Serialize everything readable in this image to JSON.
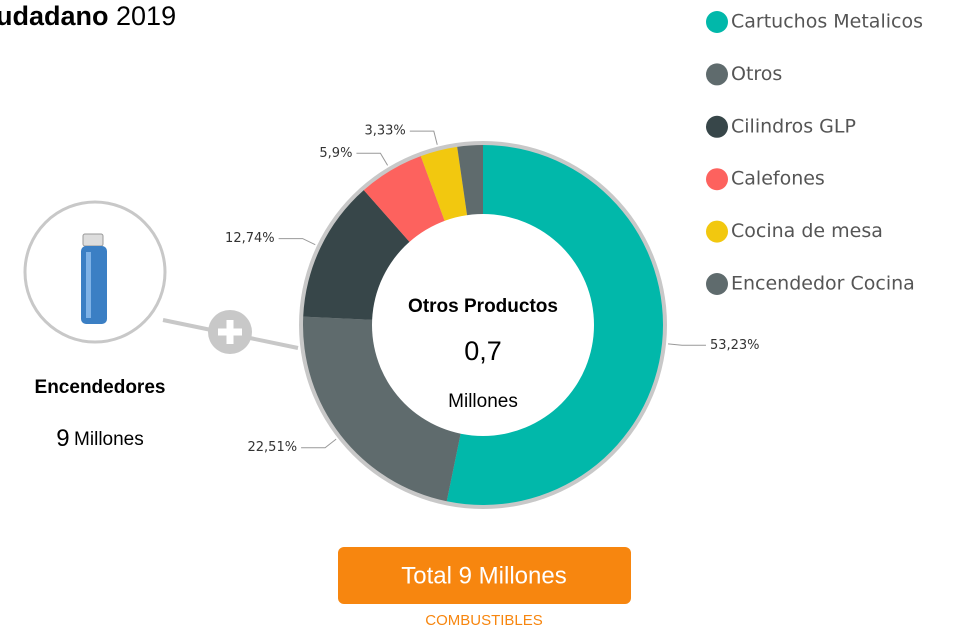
{
  "header": {
    "title_bold": "udadano",
    "title_rest": "2019"
  },
  "chart_data": {
    "type": "donut",
    "categories": [
      "Cartuchos Metalicos",
      "Otros",
      "Cilindros GLP",
      "Calefones",
      "Cocina de mesa",
      "Encendedor Cocina"
    ],
    "values": [
      53.23,
      22.51,
      12.74,
      5.9,
      3.33,
      2.29
    ],
    "value_labels": [
      "53,23%",
      "22,51%",
      "12,74%",
      "5,9%",
      "3,33%",
      null
    ],
    "colors": [
      "#01b8aa",
      "#5f6b6d",
      "#374649",
      "#fd625e",
      "#f2c80f",
      "#5f6b6d"
    ],
    "legend": "right"
  },
  "center": {
    "title": "Otros Productos",
    "value": "0,7",
    "unit": "Millones"
  },
  "side": {
    "title": "Encendedores",
    "value": "9",
    "unit": "Millones"
  },
  "button": {
    "label": "Total 9 Millones",
    "caption": "COMBUSTIBLES"
  }
}
